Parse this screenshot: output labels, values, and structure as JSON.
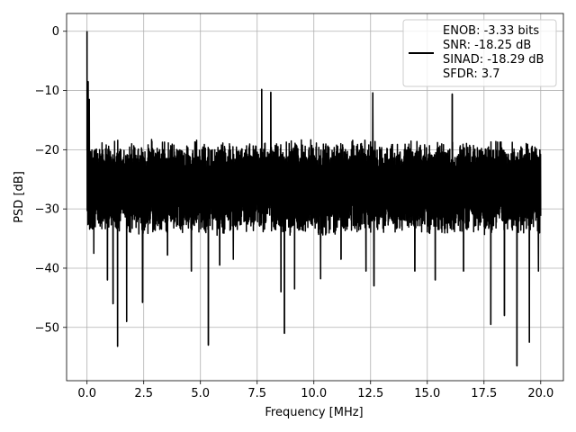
{
  "chart_data": {
    "type": "line",
    "title": "",
    "xlabel": "Frequency [MHz]",
    "ylabel": "PSD [dB]",
    "xlim": [
      -0.9,
      21.0
    ],
    "ylim": [
      -59.0,
      3.0
    ],
    "xticks": [
      0.0,
      2.5,
      5.0,
      7.5,
      10.0,
      12.5,
      15.0,
      17.5,
      20.0
    ],
    "xtick_labels": [
      "0.0",
      "2.5",
      "5.0",
      "7.5",
      "10.0",
      "12.5",
      "15.0",
      "17.5",
      "20.0"
    ],
    "yticks": [
      0,
      -10,
      -20,
      -30,
      -40,
      -50
    ],
    "ytick_labels": [
      "0",
      "−10",
      "−20",
      "−30",
      "−40",
      "−50"
    ],
    "grid": true,
    "legend_position": "top-right",
    "series": [
      {
        "name": "ENOB: -3.33 bits\nSNR: -18.25 dB\nSINAD: -18.29 dB\nSFDR: 3.7",
        "color": "#000000",
        "x_range": [
          0.0,
          20.0
        ],
        "noise_envelope": {
          "upper_typical": -14,
          "lower_typical": -31
        },
        "peaks": [
          {
            "x": 0.0,
            "y": 0.0
          },
          {
            "x": 0.05,
            "y": -8.5
          },
          {
            "x": 0.1,
            "y": -11.5
          },
          {
            "x": 7.7,
            "y": -9.8
          },
          {
            "x": 8.1,
            "y": -10.3
          },
          {
            "x": 12.6,
            "y": -10.4
          },
          {
            "x": 16.1,
            "y": -10.6
          }
        ],
        "dips": [
          {
            "x": 0.3,
            "y": -37.5
          },
          {
            "x": 0.9,
            "y": -42.0
          },
          {
            "x": 1.15,
            "y": -46.0
          },
          {
            "x": 1.35,
            "y": -53.2
          },
          {
            "x": 1.75,
            "y": -49.0
          },
          {
            "x": 2.45,
            "y": -45.8
          },
          {
            "x": 3.55,
            "y": -37.8
          },
          {
            "x": 4.6,
            "y": -40.5
          },
          {
            "x": 5.35,
            "y": -53.0
          },
          {
            "x": 5.85,
            "y": -39.5
          },
          {
            "x": 6.45,
            "y": -38.5
          },
          {
            "x": 8.55,
            "y": -44.0
          },
          {
            "x": 8.7,
            "y": -51.0
          },
          {
            "x": 9.15,
            "y": -43.5
          },
          {
            "x": 10.3,
            "y": -41.8
          },
          {
            "x": 11.2,
            "y": -38.5
          },
          {
            "x": 12.3,
            "y": -40.5
          },
          {
            "x": 12.65,
            "y": -43.0
          },
          {
            "x": 14.45,
            "y": -40.5
          },
          {
            "x": 15.35,
            "y": -42.0
          },
          {
            "x": 16.6,
            "y": -40.5
          },
          {
            "x": 17.8,
            "y": -49.5
          },
          {
            "x": 18.4,
            "y": -48.0
          },
          {
            "x": 18.95,
            "y": -56.5
          },
          {
            "x": 19.5,
            "y": -52.5
          },
          {
            "x": 19.9,
            "y": -40.5
          }
        ]
      }
    ]
  }
}
